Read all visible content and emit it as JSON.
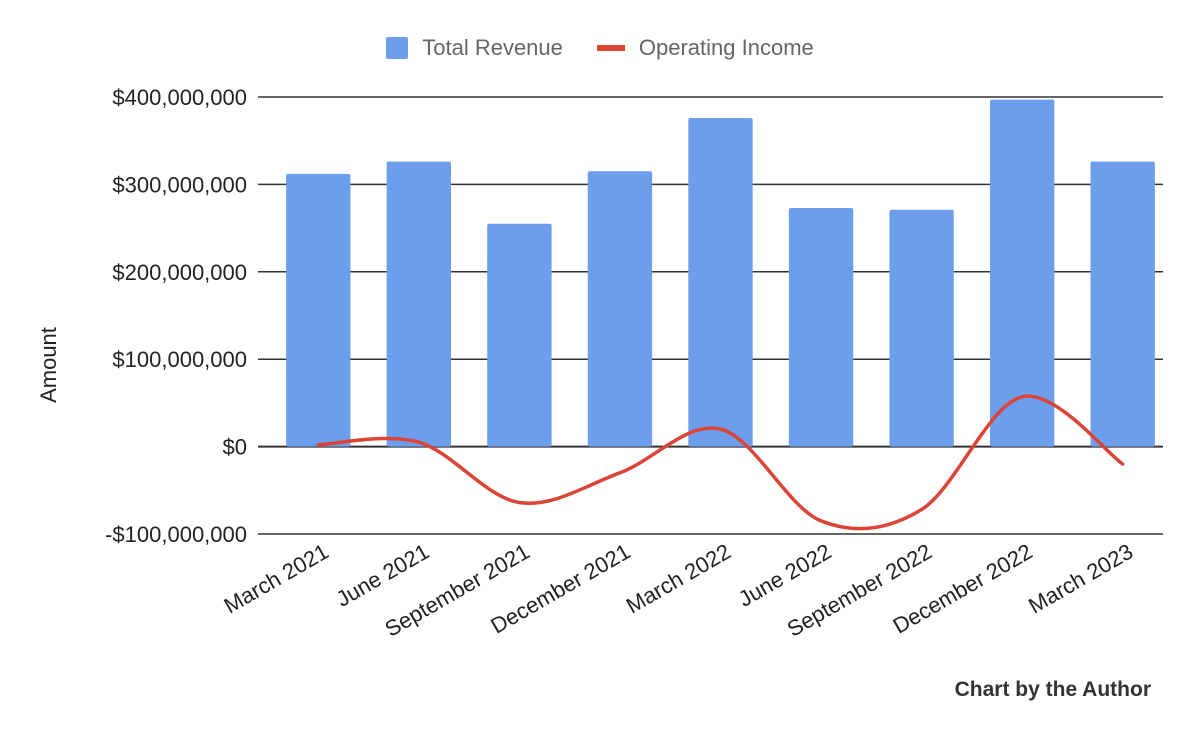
{
  "chart_data": {
    "type": "bar",
    "title": "",
    "xlabel": "",
    "ylabel": "Amount",
    "ylim": [
      -100000000,
      400000000
    ],
    "yticks": [
      -100000000,
      0,
      100000000,
      200000000,
      300000000,
      400000000
    ],
    "ytick_labels": [
      "-$100,000,000",
      "$0",
      "$100,000,000",
      "$200,000,000",
      "$300,000,000",
      "$400,000,000"
    ],
    "categories": [
      "March 2021",
      "June 2021",
      "September 2021",
      "December 2021",
      "March 2022",
      "June 2022",
      "September 2022",
      "December 2022",
      "March 2023"
    ],
    "grid": true,
    "legend_position": "top-center",
    "series": [
      {
        "name": "Total Revenue",
        "type": "bar",
        "color": "#6d9eeb",
        "values": [
          312000000,
          326000000,
          255000000,
          315000000,
          376000000,
          273000000,
          271000000,
          397000000,
          326000000
        ]
      },
      {
        "name": "Operating Income",
        "type": "line",
        "color": "#db4437",
        "values": [
          2000000,
          5000000,
          -64000000,
          -30000000,
          20000000,
          -85000000,
          -72000000,
          57000000,
          -20000000
        ]
      }
    ]
  },
  "credit": "Chart by the Author"
}
